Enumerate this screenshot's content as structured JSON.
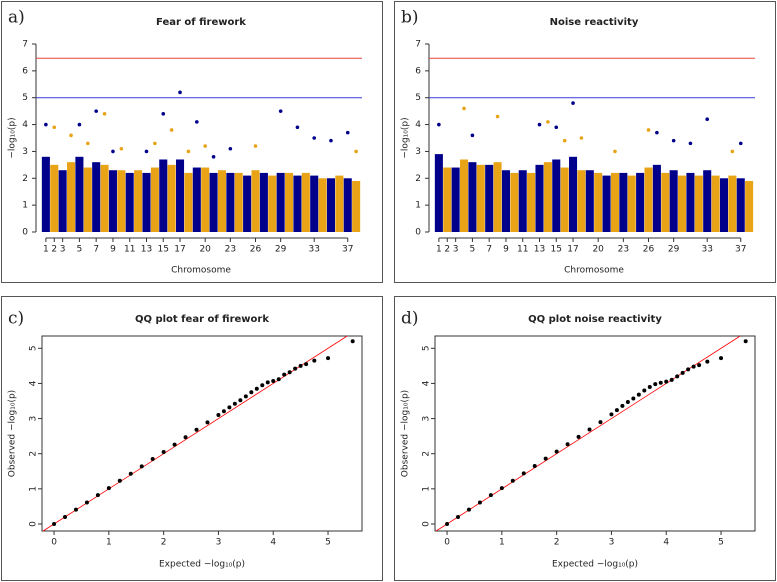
{
  "chart_data": [
    {
      "type": "manhattan",
      "panel_label": "a)",
      "title": "Fear of firework",
      "xlabel": "Chromosome",
      "ylabel": "−log₁₀(p)",
      "xlim": [
        0.3,
        38.7
      ],
      "ylim": [
        0,
        7
      ],
      "xticks": [
        1,
        2,
        3,
        5,
        7,
        9,
        11,
        13,
        15,
        17,
        20,
        23,
        26,
        29,
        33,
        37
      ],
      "yticks": [
        0,
        1,
        2,
        3,
        4,
        5,
        6,
        7
      ],
      "colors": [
        "#00008b",
        "#e8a317"
      ],
      "chromosomes": [
        1,
        2,
        3,
        4,
        5,
        6,
        7,
        8,
        9,
        10,
        11,
        12,
        13,
        14,
        15,
        16,
        17,
        18,
        19,
        20,
        21,
        22,
        23,
        24,
        25,
        26,
        27,
        28,
        29,
        30,
        31,
        32,
        33,
        34,
        35,
        36,
        37,
        38
      ],
      "bulk": [
        2.8,
        2.5,
        2.3,
        2.6,
        2.8,
        2.4,
        2.6,
        2.5,
        2.3,
        2.3,
        2.2,
        2.3,
        2.2,
        2.4,
        2.7,
        2.5,
        2.7,
        2.2,
        2.4,
        2.4,
        2.2,
        2.3,
        2.2,
        2.2,
        2.1,
        2.3,
        2.2,
        2.1,
        2.2,
        2.2,
        2.1,
        2.2,
        2.1,
        2.0,
        2.0,
        2.1,
        2.0,
        1.9
      ],
      "peaks": {
        "x": [
          1,
          2,
          4,
          5,
          6,
          7,
          8,
          9,
          10,
          13,
          14,
          15,
          16,
          17,
          18,
          19,
          20,
          21,
          23,
          26,
          29,
          31,
          33,
          35,
          37,
          38
        ],
        "y": [
          4.0,
          3.9,
          3.6,
          4.0,
          3.3,
          4.5,
          4.4,
          3.0,
          3.1,
          3.0,
          3.3,
          4.4,
          3.8,
          5.2,
          3.0,
          4.1,
          3.2,
          2.8,
          3.1,
          3.2,
          4.5,
          3.9,
          3.5,
          3.4,
          3.7,
          3.0
        ]
      },
      "thresholds": [
        {
          "value": 6.47,
          "color": "#e8453c"
        },
        {
          "value": 5,
          "color": "#3a3ad8"
        }
      ]
    },
    {
      "type": "manhattan",
      "panel_label": "b)",
      "title": "Noise reactivity",
      "xlabel": "Chromosome",
      "ylabel": "−log₁₀(p)",
      "xlim": [
        0.3,
        38.7
      ],
      "ylim": [
        0,
        7
      ],
      "xticks": [
        1,
        2,
        3,
        5,
        7,
        9,
        11,
        13,
        15,
        17,
        20,
        23,
        26,
        29,
        33,
        37
      ],
      "yticks": [
        0,
        1,
        2,
        3,
        4,
        5,
        6,
        7
      ],
      "colors": [
        "#00008b",
        "#e8a317"
      ],
      "chromosomes": [
        1,
        2,
        3,
        4,
        5,
        6,
        7,
        8,
        9,
        10,
        11,
        12,
        13,
        14,
        15,
        16,
        17,
        18,
        19,
        20,
        21,
        22,
        23,
        24,
        25,
        26,
        27,
        28,
        29,
        30,
        31,
        32,
        33,
        34,
        35,
        36,
        37,
        38
      ],
      "bulk": [
        2.9,
        2.4,
        2.4,
        2.7,
        2.6,
        2.5,
        2.5,
        2.6,
        2.3,
        2.2,
        2.3,
        2.2,
        2.5,
        2.6,
        2.7,
        2.4,
        2.8,
        2.3,
        2.3,
        2.2,
        2.1,
        2.2,
        2.2,
        2.1,
        2.2,
        2.4,
        2.5,
        2.2,
        2.3,
        2.1,
        2.2,
        2.1,
        2.3,
        2.1,
        2.0,
        2.1,
        2.0,
        1.9
      ],
      "peaks": {
        "x": [
          1,
          4,
          5,
          8,
          13,
          14,
          15,
          16,
          17,
          18,
          22,
          26,
          27,
          29,
          31,
          33,
          36,
          37
        ],
        "y": [
          4.0,
          4.6,
          3.6,
          4.3,
          4.0,
          4.1,
          3.9,
          3.4,
          4.8,
          3.5,
          3.0,
          3.8,
          3.7,
          3.4,
          3.3,
          4.2,
          3.0,
          3.3
        ]
      },
      "thresholds": [
        {
          "value": 6.47,
          "color": "#e8453c"
        },
        {
          "value": 5,
          "color": "#3a3ad8"
        }
      ]
    },
    {
      "type": "qq",
      "panel_label": "c)",
      "title": "QQ plot fear of firework",
      "xlabel": "Expected  −log₁₀(p)",
      "ylabel": "Observed  −log₁₀(p)",
      "xlim": [
        -0.22,
        5.62
      ],
      "ylim": [
        -0.2,
        5.35
      ],
      "xticks": [
        0,
        1,
        2,
        3,
        4,
        5
      ],
      "yticks": [
        0,
        1,
        2,
        3,
        4,
        5
      ],
      "color": "#000000",
      "diagonal_color": "#ff0000",
      "x": [
        0,
        0.2,
        0.4,
        0.6,
        0.8,
        1.0,
        1.2,
        1.4,
        1.6,
        1.8,
        2.0,
        2.2,
        2.4,
        2.6,
        2.8,
        3.0,
        3.1,
        3.2,
        3.3,
        3.4,
        3.5,
        3.6,
        3.7,
        3.8,
        3.9,
        4.0,
        4.1,
        4.2,
        4.3,
        4.4,
        4.5,
        4.6,
        4.75,
        5.0,
        5.45
      ],
      "y": [
        0,
        0.2,
        0.41,
        0.61,
        0.82,
        1.02,
        1.23,
        1.43,
        1.64,
        1.85,
        2.05,
        2.26,
        2.47,
        2.68,
        2.89,
        3.1,
        3.21,
        3.32,
        3.42,
        3.52,
        3.63,
        3.75,
        3.85,
        3.95,
        4.03,
        4.07,
        4.12,
        4.25,
        4.32,
        4.42,
        4.5,
        4.55,
        4.65,
        4.72,
        5.2
      ]
    },
    {
      "type": "qq",
      "panel_label": "d)",
      "title": "QQ plot noise reactivity",
      "xlabel": "Expected  −log₁₀(p)",
      "ylabel": "Observed  −log₁₀(p)",
      "xlim": [
        -0.22,
        5.62
      ],
      "ylim": [
        -0.2,
        5.35
      ],
      "xticks": [
        0,
        1,
        2,
        3,
        4,
        5
      ],
      "yticks": [
        0,
        1,
        2,
        3,
        4,
        5
      ],
      "color": "#000000",
      "diagonal_color": "#ff0000",
      "x": [
        0,
        0.2,
        0.4,
        0.6,
        0.8,
        1.0,
        1.2,
        1.4,
        1.6,
        1.8,
        2.0,
        2.2,
        2.4,
        2.6,
        2.8,
        3.0,
        3.1,
        3.2,
        3.3,
        3.4,
        3.5,
        3.6,
        3.7,
        3.8,
        3.9,
        4.0,
        4.1,
        4.2,
        4.3,
        4.4,
        4.5,
        4.6,
        4.75,
        5.0,
        5.45
      ],
      "y": [
        0,
        0.2,
        0.41,
        0.61,
        0.82,
        1.02,
        1.23,
        1.44,
        1.65,
        1.86,
        2.06,
        2.27,
        2.48,
        2.69,
        2.9,
        3.12,
        3.24,
        3.36,
        3.47,
        3.57,
        3.68,
        3.8,
        3.9,
        3.98,
        4.02,
        4.05,
        4.1,
        4.2,
        4.3,
        4.4,
        4.48,
        4.52,
        4.62,
        4.72,
        5.2
      ]
    }
  ]
}
